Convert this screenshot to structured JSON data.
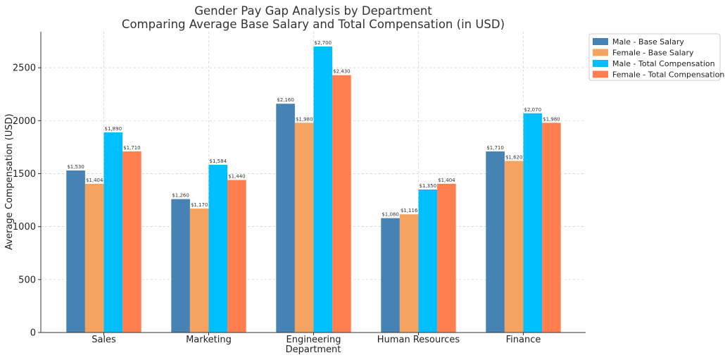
{
  "chart_data": {
    "type": "bar",
    "title": "Gender Pay Gap Analysis by Department",
    "subtitle": "Comparing Average Base Salary and Total Compensation (in USD)",
    "xlabel": "Department",
    "ylabel": "Average Compensation (USD)",
    "categories": [
      "Sales",
      "Marketing",
      "Engineering",
      "Human Resources",
      "Finance"
    ],
    "ylim": [
      0,
      2840
    ],
    "yticks": [
      0,
      500,
      1000,
      1500,
      2000,
      2500
    ],
    "grid": true,
    "legend_position": "top-right (outside plot)",
    "series": [
      {
        "name": "Male - Base Salary",
        "color": "#4682b4",
        "values": [
          1530,
          1260,
          2160,
          1080,
          1710
        ],
        "labels": [
          "$1,530",
          "$1,260",
          "$2,160",
          "$1,080",
          "$1,710"
        ]
      },
      {
        "name": "Female - Base Salary",
        "color": "#f4a460",
        "values": [
          1404,
          1170,
          1980,
          1116,
          1620
        ],
        "labels": [
          "$1,404",
          "$1,170",
          "$1,980",
          "$1,116",
          "$1,620"
        ]
      },
      {
        "name": "Male - Total Compensation",
        "color": "#00bfff",
        "values": [
          1890,
          1584,
          2700,
          1350,
          2070
        ],
        "labels": [
          "$1,890",
          "$1,584",
          "$2,700",
          "$1,350",
          "$2,070"
        ]
      },
      {
        "name": "Female - Total Compensation",
        "color": "#ff7f50",
        "values": [
          1710,
          1440,
          2430,
          1404,
          1980
        ],
        "labels": [
          "$1,710",
          "$1,440",
          "$2,430",
          "$1,404",
          "$1,980"
        ]
      }
    ]
  }
}
